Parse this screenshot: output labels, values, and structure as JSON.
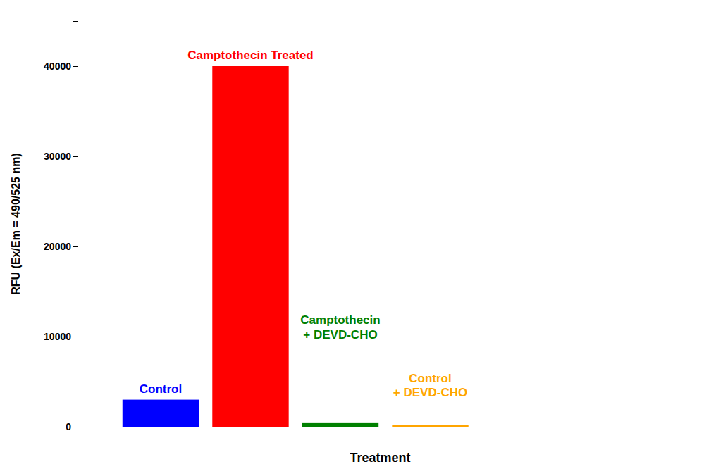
{
  "chart_data": {
    "type": "bar",
    "categories": [
      null,
      null,
      null,
      null
    ],
    "values": [
      3000,
      40000,
      400,
      200
    ],
    "colors": [
      "#0000FF",
      "#FF0000",
      "#008000",
      "#FFA500"
    ],
    "xlabel": "Treatment",
    "ylabel": "RFU (Ex/Em = 490/525 nm)",
    "ylim": [
      0,
      45000
    ],
    "yticks": [
      0,
      10000,
      20000,
      30000,
      40000
    ],
    "grid": false,
    "tick_labels": "y",
    "annotations": [
      "Control",
      "Camptothecin Treated",
      "Camptothecin\n+ DEVD-CHO",
      "Control\n+ DEVD-CHO"
    ]
  }
}
